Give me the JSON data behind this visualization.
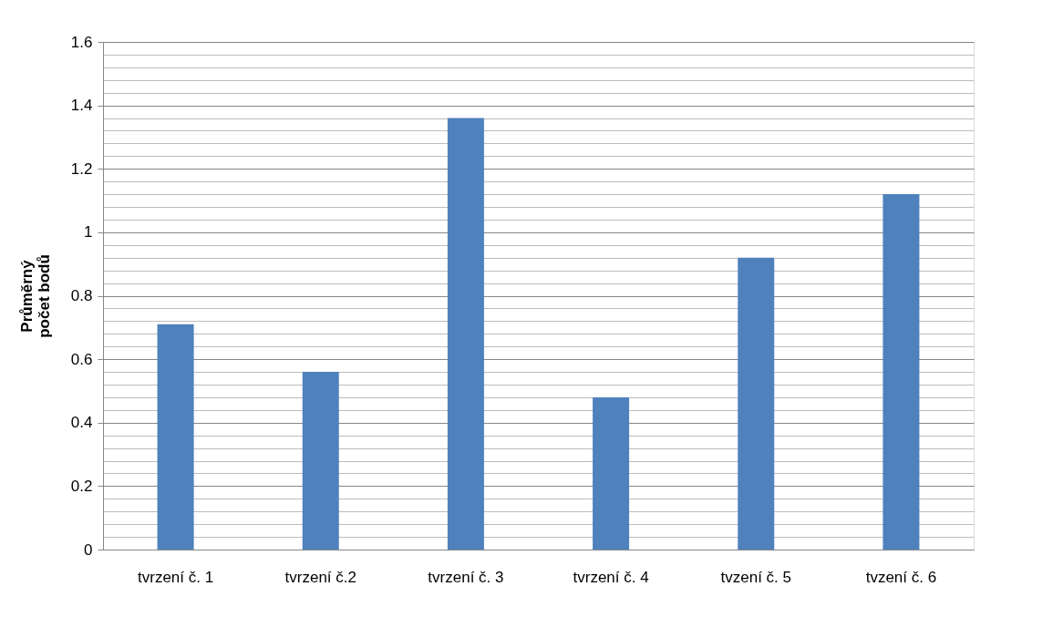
{
  "chart_data": {
    "type": "bar",
    "ylabel": "Průměrný\npočet bodů",
    "categories": [
      "tvrzení č. 1",
      "tvrzení č.2",
      "tvrzení č. 3",
      "tvrzení č. 4",
      "tvzení č. 5",
      "tvzení č. 6"
    ],
    "values": [
      0.71,
      0.56,
      1.36,
      0.48,
      0.92,
      1.12
    ],
    "color": "#4f81bd",
    "ylim": [
      0,
      1.6
    ],
    "yticks": [
      0,
      {
        "value": 0.04,
        "label": null
      },
      {
        "value": 0.08,
        "label": null
      },
      {
        "value": 0.12,
        "label": null
      },
      {
        "value": 0.16,
        "label": null
      },
      0.2,
      {
        "value": 0.24,
        "label": null
      },
      {
        "value": 0.28,
        "label": null
      },
      {
        "value": 0.32,
        "label": null
      },
      {
        "value": 0.36,
        "label": null
      },
      0.4,
      {
        "value": 0.44,
        "label": null
      },
      {
        "value": 0.48,
        "label": null
      },
      {
        "value": 0.52,
        "label": null
      },
      {
        "value": 0.56,
        "label": null
      },
      0.6,
      {
        "value": 0.64,
        "label": null
      },
      {
        "value": 0.68,
        "label": null
      },
      {
        "value": 0.72,
        "label": null
      },
      {
        "value": 0.76,
        "label": null
      },
      0.8,
      {
        "value": 0.84,
        "label": null
      },
      {
        "value": 0.88,
        "label": null
      },
      {
        "value": 0.92,
        "label": null
      },
      {
        "value": 0.96,
        "label": null
      },
      1,
      {
        "value": 1.04,
        "label": null
      },
      {
        "value": 1.08,
        "label": null
      },
      {
        "value": 1.12,
        "label": null
      },
      {
        "value": 1.16,
        "label": null
      },
      1.2,
      {
        "value": 1.24,
        "label": null
      },
      {
        "value": 1.28,
        "label": null
      },
      {
        "value": 1.32,
        "label": null
      },
      {
        "value": 1.36,
        "label": null
      },
      1.4,
      {
        "value": 1.44,
        "label": null
      },
      {
        "value": 1.48,
        "label": null
      },
      {
        "value": 1.52,
        "label": null
      },
      {
        "value": 1.56,
        "label": null
      },
      1.6
    ],
    "grid": true
  }
}
